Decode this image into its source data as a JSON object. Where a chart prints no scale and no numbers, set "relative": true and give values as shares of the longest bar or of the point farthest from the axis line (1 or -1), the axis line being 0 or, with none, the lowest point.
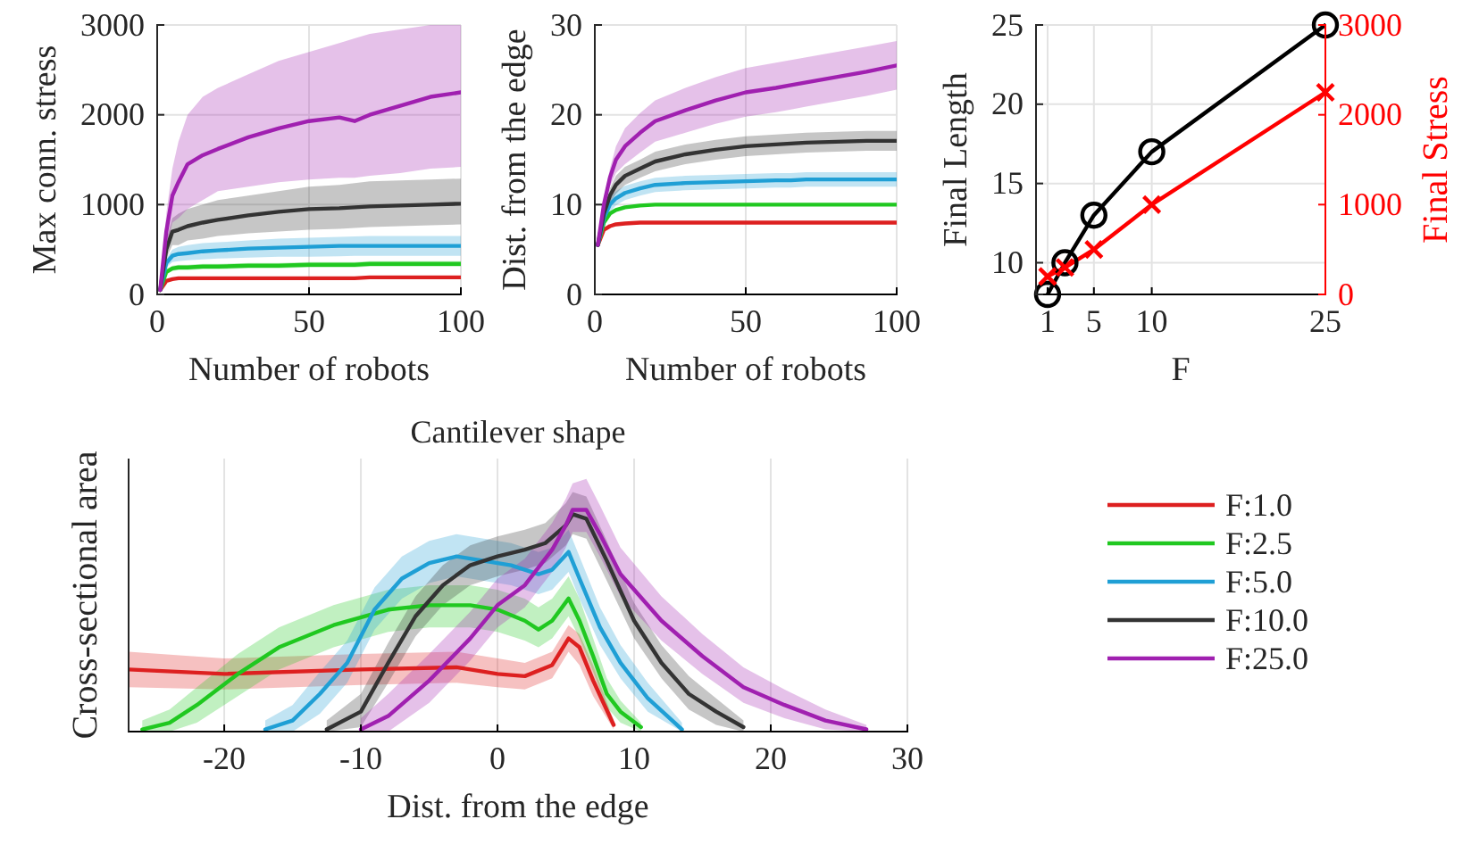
{
  "chart_data": [
    {
      "type": "line",
      "xlabel": "Number of robots",
      "ylabel": "Max conn. stress",
      "xlim": [
        0,
        100
      ],
      "xticks": [
        0,
        50,
        100
      ],
      "ylim": [
        0,
        3000
      ],
      "yticks": [
        0,
        1000,
        2000,
        3000
      ],
      "grid": true,
      "x": [
        1,
        3,
        5,
        7,
        10,
        15,
        20,
        30,
        40,
        50,
        60,
        65,
        70,
        80,
        90,
        100
      ],
      "series": [
        {
          "color": "#dd2020",
          "values": [
            50,
            150,
            170,
            180,
            180,
            180,
            180,
            180,
            180,
            180,
            180,
            180,
            190,
            190,
            190,
            190
          ]
        },
        {
          "color": "#20c820",
          "values": [
            50,
            250,
            290,
            300,
            300,
            310,
            310,
            320,
            320,
            330,
            330,
            330,
            340,
            340,
            340,
            340
          ],
          "lower": [
            50,
            220,
            260,
            270,
            270,
            280,
            280,
            290,
            290,
            300,
            300,
            300,
            310,
            310,
            310,
            310
          ],
          "upper": [
            50,
            280,
            320,
            330,
            330,
            340,
            340,
            350,
            350,
            360,
            360,
            360,
            370,
            370,
            370,
            370
          ]
        },
        {
          "color": "#1f9fd5",
          "values": [
            50,
            350,
            430,
            450,
            460,
            480,
            490,
            510,
            520,
            530,
            540,
            540,
            540,
            540,
            540,
            540
          ],
          "lower": [
            50,
            300,
            360,
            370,
            380,
            390,
            400,
            410,
            420,
            420,
            425,
            430,
            430,
            430,
            430,
            430
          ],
          "upper": [
            50,
            400,
            500,
            530,
            550,
            570,
            580,
            600,
            620,
            630,
            640,
            645,
            650,
            650,
            650,
            650
          ]
        },
        {
          "color": "#333333",
          "values": [
            50,
            500,
            700,
            720,
            760,
            800,
            830,
            880,
            920,
            950,
            960,
            970,
            980,
            990,
            1000,
            1010
          ],
          "lower": [
            50,
            400,
            550,
            550,
            600,
            620,
            650,
            680,
            700,
            720,
            730,
            740,
            750,
            760,
            770,
            780
          ],
          "upper": [
            50,
            600,
            850,
            900,
            950,
            1000,
            1050,
            1100,
            1150,
            1200,
            1220,
            1240,
            1260,
            1270,
            1280,
            1290
          ]
        },
        {
          "color": "#a020b0",
          "values": [
            50,
            700,
            1100,
            1250,
            1450,
            1550,
            1620,
            1750,
            1850,
            1930,
            1970,
            1930,
            2000,
            2100,
            2200,
            2250
          ],
          "lower": [
            50,
            500,
            800,
            850,
            950,
            1050,
            1150,
            1200,
            1250,
            1280,
            1300,
            1300,
            1320,
            1350,
            1400,
            1420
          ],
          "upper": [
            50,
            900,
            1400,
            1700,
            2000,
            2200,
            2300,
            2450,
            2600,
            2700,
            2800,
            2850,
            2900,
            2950,
            3000,
            3000
          ]
        }
      ]
    },
    {
      "type": "line",
      "xlabel": "Number of robots",
      "ylabel": "Dist. from the edge",
      "xlim": [
        0,
        100
      ],
      "xticks": [
        0,
        50,
        100
      ],
      "ylim": [
        0,
        30
      ],
      "yticks": [
        0,
        10,
        20,
        30
      ],
      "grid": true,
      "x": [
        1,
        3,
        5,
        7,
        10,
        15,
        20,
        30,
        40,
        50,
        60,
        65,
        70,
        80,
        90,
        100
      ],
      "series": [
        {
          "color": "#dd2020",
          "values": [
            5.5,
            7.2,
            7.6,
            7.8,
            7.9,
            8,
            8,
            8,
            8,
            8,
            8,
            8,
            8,
            8,
            8,
            8
          ]
        },
        {
          "color": "#20c820",
          "values": [
            5.5,
            8,
            9,
            9.4,
            9.7,
            9.9,
            10,
            10,
            10,
            10,
            10,
            10,
            10,
            10,
            10,
            10
          ]
        },
        {
          "color": "#1f9fd5",
          "values": [
            5.5,
            8.5,
            10,
            10.7,
            11.3,
            11.8,
            12.2,
            12.4,
            12.5,
            12.6,
            12.7,
            12.7,
            12.8,
            12.8,
            12.8,
            12.8
          ],
          "lower": [
            5.5,
            8,
            9.2,
            9.9,
            10.5,
            11,
            11.4,
            11.6,
            11.7,
            11.8,
            11.9,
            11.9,
            12,
            12,
            12,
            12
          ],
          "upper": [
            5.5,
            9,
            10.8,
            11.5,
            12.1,
            12.6,
            13,
            13.2,
            13.3,
            13.4,
            13.5,
            13.5,
            13.6,
            13.6,
            13.6,
            13.6
          ]
        },
        {
          "color": "#333333",
          "values": [
            5.5,
            9,
            11,
            12.2,
            13.2,
            14,
            14.8,
            15.6,
            16.1,
            16.5,
            16.7,
            16.8,
            16.9,
            17,
            17.1,
            17.1
          ],
          "lower": [
            5.5,
            8.5,
            10.2,
            11.2,
            12.2,
            13,
            13.7,
            14.5,
            15,
            15.4,
            15.6,
            15.7,
            15.8,
            15.9,
            16,
            16
          ],
          "upper": [
            5.5,
            9.5,
            11.8,
            13.2,
            14.2,
            15,
            15.9,
            16.7,
            17.2,
            17.6,
            17.8,
            17.9,
            18,
            18.1,
            18.2,
            18.2
          ]
        },
        {
          "color": "#a020b0",
          "values": [
            5.5,
            10,
            13,
            15,
            16.5,
            18,
            19.3,
            20.5,
            21.6,
            22.5,
            23,
            23.3,
            23.6,
            24.2,
            24.8,
            25.5
          ],
          "lower": [
            5.5,
            9.5,
            12,
            13.5,
            14.5,
            15.8,
            17,
            18,
            19,
            19.8,
            20.3,
            20.6,
            20.9,
            21.5,
            22.1,
            22.8
          ],
          "upper": [
            5.5,
            10.5,
            14,
            16.5,
            18.5,
            20.2,
            21.6,
            23,
            24.2,
            25.2,
            25.8,
            26.1,
            26.4,
            27,
            27.6,
            28.2
          ]
        }
      ]
    },
    {
      "type": "line",
      "xlabel": "F",
      "ylabel": "Final Length",
      "y2label": "Final Stress",
      "xlim": [
        0,
        25
      ],
      "xticks": [
        1,
        5,
        10,
        25
      ],
      "ylim": [
        8,
        25
      ],
      "yticks": [
        10,
        15,
        20,
        25
      ],
      "y2lim": [
        0,
        3000
      ],
      "y2ticks": [
        0,
        1000,
        2000,
        3000
      ],
      "grid": true,
      "x": [
        1,
        2.5,
        5,
        10,
        25
      ],
      "series": [
        {
          "color": "#000000",
          "marker": "circle",
          "values": [
            8,
            10,
            13,
            17,
            25
          ]
        },
        {
          "color": "#ff0000",
          "marker": "cross",
          "axis": "y2",
          "values": [
            200,
            300,
            500,
            1000,
            2250
          ]
        }
      ]
    },
    {
      "type": "line",
      "title": "Cantilever shape",
      "xlabel": "Dist. from the edge",
      "ylabel": "Cross-sectional area",
      "relative": true,
      "xlim": [
        -27,
        30
      ],
      "xticks": [
        -20,
        -10,
        0,
        10,
        20,
        30
      ],
      "grid": "x",
      "legend": "right",
      "series": [
        {
          "name": "F:1.0",
          "color": "#dd2020",
          "x": [
            -27,
            -20,
            -10,
            -3,
            0,
            2,
            4,
            5.2,
            6,
            7,
            8.5
          ],
          "values": [
            0.28,
            0.26,
            0.28,
            0.29,
            0.26,
            0.25,
            0.3,
            0.42,
            0.38,
            0.23,
            0.03
          ],
          "lower": [
            0.2,
            0.19,
            0.21,
            0.22,
            0.2,
            0.19,
            0.24,
            0.36,
            0.3,
            0.16,
            0.01
          ],
          "upper": [
            0.36,
            0.33,
            0.35,
            0.36,
            0.33,
            0.31,
            0.36,
            0.48,
            0.44,
            0.3,
            0.05
          ]
        },
        {
          "name": "F:2.5",
          "color": "#20c820",
          "x": [
            -26,
            -24,
            -22,
            -19,
            -16,
            -12,
            -8,
            -5,
            -2,
            0,
            2,
            3,
            4,
            5.2,
            6,
            7,
            8,
            9,
            10.5
          ],
          "values": [
            0.01,
            0.04,
            0.12,
            0.26,
            0.38,
            0.48,
            0.55,
            0.57,
            0.57,
            0.55,
            0.5,
            0.46,
            0.5,
            0.6,
            0.5,
            0.34,
            0.17,
            0.09,
            0.02
          ],
          "lower": [
            0,
            0,
            0.04,
            0.16,
            0.28,
            0.38,
            0.45,
            0.47,
            0.47,
            0.45,
            0.41,
            0.38,
            0.42,
            0.52,
            0.42,
            0.27,
            0.11,
            0.04,
            0
          ],
          "upper": [
            0.05,
            0.1,
            0.2,
            0.35,
            0.47,
            0.57,
            0.64,
            0.66,
            0.66,
            0.64,
            0.6,
            0.56,
            0.6,
            0.7,
            0.6,
            0.42,
            0.24,
            0.14,
            0.04
          ]
        },
        {
          "name": "F:5.0",
          "color": "#1f9fd5",
          "x": [
            -17,
            -15,
            -13,
            -11,
            -9,
            -7,
            -5,
            -3,
            -1,
            1,
            3,
            4,
            5.2,
            6,
            7.5,
            9,
            11,
            13.5
          ],
          "values": [
            0.01,
            0.05,
            0.17,
            0.31,
            0.55,
            0.69,
            0.76,
            0.79,
            0.77,
            0.75,
            0.71,
            0.73,
            0.81,
            0.69,
            0.47,
            0.31,
            0.15,
            0.01
          ],
          "lower": [
            0,
            0,
            0.08,
            0.22,
            0.46,
            0.6,
            0.67,
            0.7,
            0.68,
            0.66,
            0.62,
            0.64,
            0.72,
            0.6,
            0.39,
            0.24,
            0.09,
            0
          ],
          "upper": [
            0.05,
            0.12,
            0.27,
            0.41,
            0.65,
            0.79,
            0.86,
            0.89,
            0.87,
            0.85,
            0.81,
            0.83,
            0.91,
            0.79,
            0.56,
            0.39,
            0.22,
            0.04
          ]
        },
        {
          "name": "F:10.0",
          "color": "#333333",
          "x": [
            -12.5,
            -10,
            -8,
            -6,
            -4,
            -2,
            0,
            2,
            3.5,
            5,
            5.5,
            6.5,
            8,
            10,
            12,
            14,
            16,
            18
          ],
          "values": [
            0.01,
            0.09,
            0.31,
            0.52,
            0.66,
            0.75,
            0.79,
            0.82,
            0.85,
            0.93,
            0.98,
            0.96,
            0.77,
            0.5,
            0.31,
            0.17,
            0.09,
            0.02
          ],
          "lower": [
            0,
            0.02,
            0.22,
            0.43,
            0.57,
            0.66,
            0.7,
            0.73,
            0.76,
            0.84,
            0.89,
            0.87,
            0.68,
            0.42,
            0.24,
            0.1,
            0.03,
            0
          ],
          "upper": [
            0.05,
            0.17,
            0.4,
            0.61,
            0.75,
            0.84,
            0.88,
            0.91,
            0.94,
            1.03,
            1.08,
            1.06,
            0.86,
            0.58,
            0.39,
            0.25,
            0.15,
            0.05
          ]
        },
        {
          "name": "F:25.0",
          "color": "#a020b0",
          "x": [
            -10,
            -8,
            -5,
            -2,
            0,
            2,
            4,
            5,
            5.5,
            6.5,
            7.5,
            9,
            12,
            15,
            18,
            21,
            24,
            27
          ],
          "values": [
            0.01,
            0.07,
            0.23,
            0.42,
            0.57,
            0.66,
            0.82,
            0.93,
            1,
            1,
            0.89,
            0.71,
            0.5,
            0.34,
            0.2,
            0.12,
            0.05,
            0.01
          ],
          "lower": [
            0,
            0,
            0.13,
            0.32,
            0.47,
            0.56,
            0.72,
            0.83,
            0.9,
            0.9,
            0.79,
            0.61,
            0.41,
            0.26,
            0.13,
            0.06,
            0.01,
            0
          ],
          "upper": [
            0.06,
            0.17,
            0.35,
            0.54,
            0.69,
            0.78,
            0.94,
            1.05,
            1.12,
            1.14,
            1.02,
            0.83,
            0.61,
            0.44,
            0.29,
            0.19,
            0.1,
            0.03
          ]
        }
      ]
    }
  ]
}
